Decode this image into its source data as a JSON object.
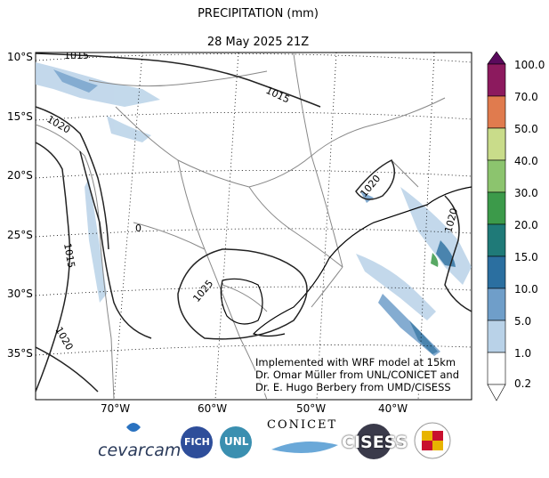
{
  "title": "PRECIPITATION (mm)",
  "datetime": "28 May 2025 21Z",
  "lat_labels": [
    "10°S",
    "15°S",
    "20°S",
    "25°S",
    "30°S",
    "35°S"
  ],
  "lon_labels": [
    "70°W",
    "60°W",
    "50°W",
    "40°W"
  ],
  "colorbar": {
    "levels": [
      "100.0",
      "70.0",
      "50.0",
      "40.0",
      "30.0",
      "20.0",
      "15.0",
      "10.0",
      "5.0",
      "1.0",
      "0.2"
    ],
    "colors": [
      "#5a0a5c",
      "#8c1a5e",
      "#e07b4e",
      "#f0b46a",
      "#c9dc8a",
      "#8cc46e",
      "#3c9a4a",
      "#1f7a78",
      "#2b6fa0",
      "#6f9ec9",
      "#b9d2e8",
      "#ffffff"
    ]
  },
  "isobars": [
    "1015",
    "1015",
    "1020",
    "1015",
    "1020",
    "1020",
    "1025",
    "1020",
    "0"
  ],
  "credit": {
    "line1": "Implemented with WRF model at 15km",
    "line2": "Dr. Omar Müller from UNL/CONICET and",
    "line3": "Dr. E. Hugo Berbery from UMD/CISESS"
  },
  "logos": {
    "cevarcam": "cevarcam",
    "fich": "FICH",
    "unl": "UNL",
    "conicet": "CONICET",
    "cisess": "CISESS"
  }
}
